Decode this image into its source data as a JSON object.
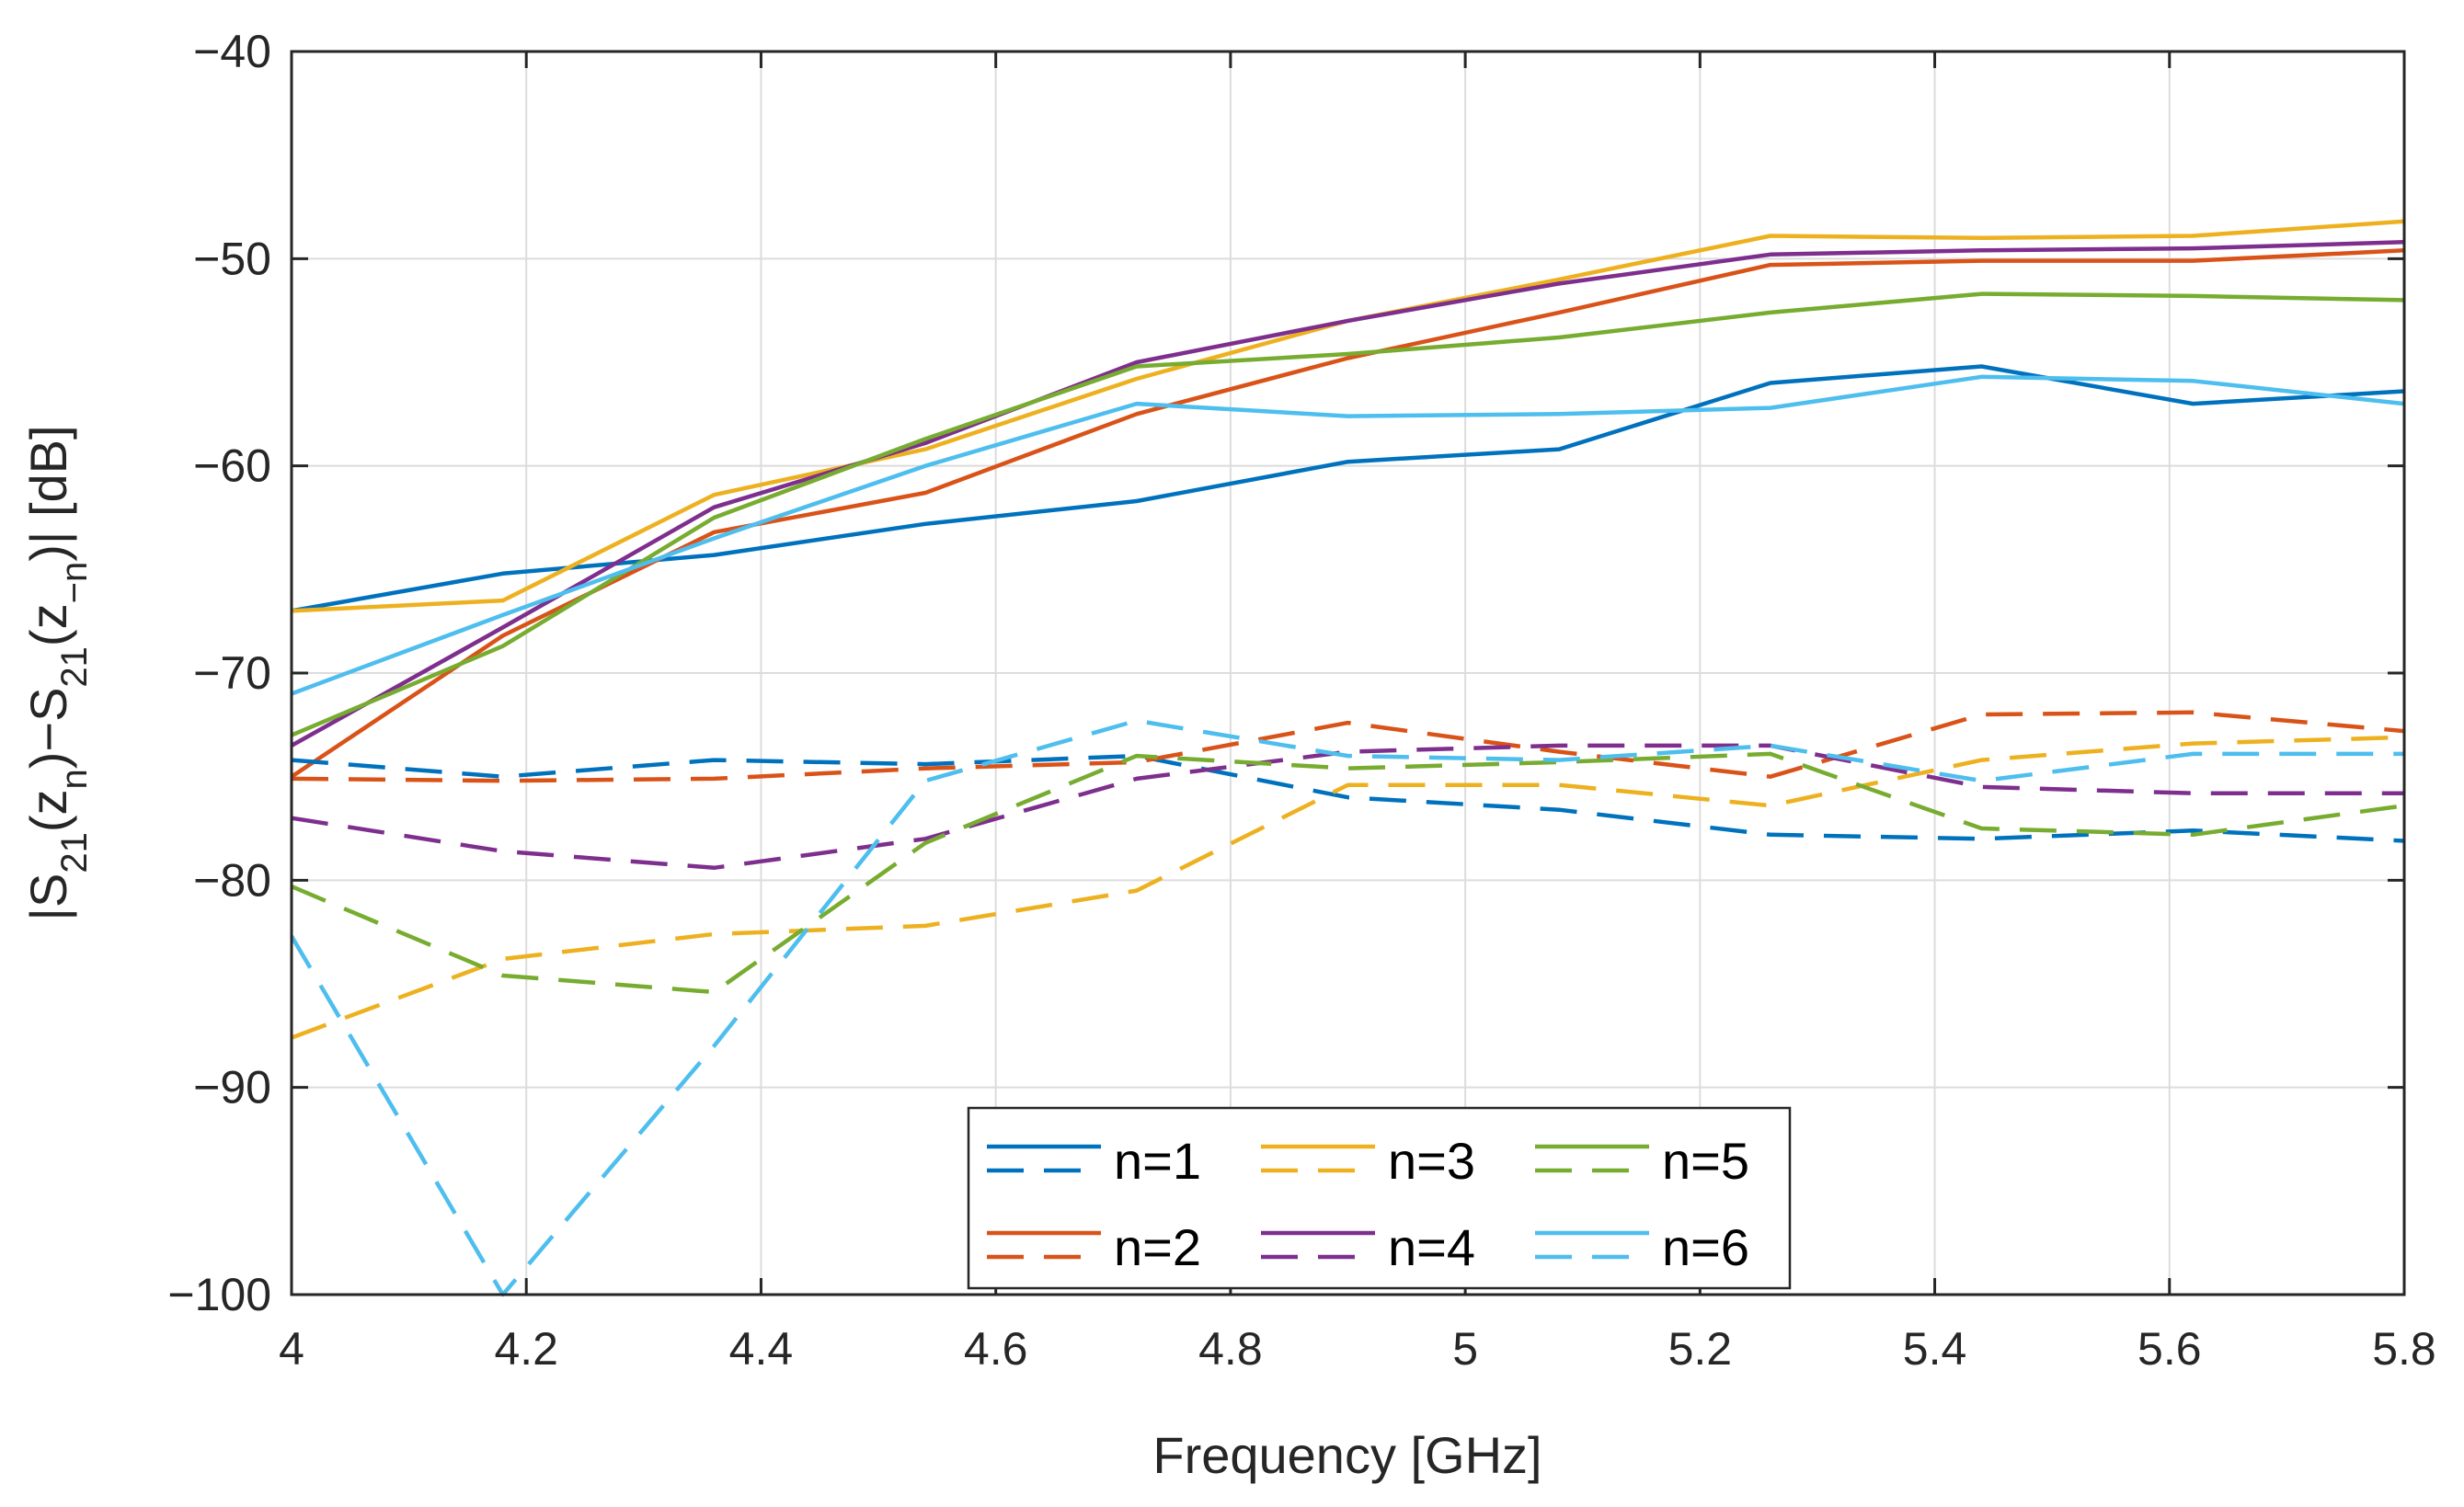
{
  "chart_data": {
    "type": "line",
    "title": "",
    "xlabel": "Frequency [GHz]",
    "ylabel": {
      "base": "|S",
      "sub1": "21",
      "p1": "(z",
      "sub2": "n",
      "p2": ")−S",
      "sub3": "21",
      "p3": "(z",
      "sub4": "−n",
      "p4": ")| [dB]"
    },
    "xlim": [
      4,
      5.8
    ],
    "ylim": [
      -100,
      -40
    ],
    "xticks": [
      4,
      4.2,
      4.4,
      4.6,
      4.8,
      5,
      5.2,
      5.4,
      5.6,
      5.8
    ],
    "xtick_labels": [
      "4",
      "4.2",
      "4.4",
      "4.6",
      "4.8",
      "5",
      "5.2",
      "5.4",
      "5.6",
      "5.8"
    ],
    "yticks": [
      -40,
      -50,
      -60,
      -70,
      -80,
      -90,
      -100
    ],
    "ytick_labels": [
      "−40",
      "−50",
      "−60",
      "−70",
      "−80",
      "−90",
      "−100"
    ],
    "grid": true,
    "legend_position": "bottom-center",
    "x": [
      4,
      4.18,
      4.36,
      4.54,
      4.72,
      4.9,
      5.08,
      5.26,
      5.44,
      5.62,
      5.8
    ],
    "series": [
      {
        "name": "n=1 solid",
        "n": "n=1",
        "style": "solid",
        "color": "#0072BD",
        "values": [
          -67.0,
          -65.2,
          -64.3,
          -62.8,
          -61.7,
          -59.8,
          -59.2,
          -56.0,
          -55.2,
          -57.0,
          -56.4
        ]
      },
      {
        "name": "n=2 solid",
        "n": "n=2",
        "style": "solid",
        "color": "#D95319",
        "values": [
          -75.0,
          -68.2,
          -63.2,
          -61.3,
          -57.5,
          -54.8,
          -52.6,
          -50.3,
          -50.1,
          -50.1,
          -49.6
        ]
      },
      {
        "name": "n=3 solid",
        "n": "n=3",
        "style": "solid",
        "color": "#EDB120",
        "values": [
          -67.0,
          -66.5,
          -61.4,
          -59.2,
          -55.8,
          -53.0,
          -51.0,
          -48.9,
          -49.0,
          -48.9,
          -48.2
        ]
      },
      {
        "name": "n=4 solid",
        "n": "n=4",
        "style": "solid",
        "color": "#7E2F8E",
        "values": [
          -73.5,
          -67.8,
          -62.0,
          -58.9,
          -55.0,
          -53.0,
          -51.2,
          -49.8,
          -49.6,
          -49.5,
          -49.2
        ]
      },
      {
        "name": "n=5 solid",
        "n": "n=5",
        "style": "solid",
        "color": "#77AC30",
        "values": [
          -73.0,
          -68.7,
          -62.5,
          -58.7,
          -55.2,
          -54.6,
          -53.8,
          -52.6,
          -51.7,
          -51.8,
          -52.0
        ]
      },
      {
        "name": "n=6 solid",
        "n": "n=6",
        "style": "solid",
        "color": "#4DBEEE",
        "values": [
          -71.0,
          -67.2,
          -63.5,
          -60.0,
          -57.0,
          -57.6,
          -57.5,
          -57.2,
          -55.7,
          -55.9,
          -57.0
        ]
      },
      {
        "name": "n=1 dashed",
        "n": "n=1",
        "style": "dashed",
        "color": "#0072BD",
        "values": [
          -74.2,
          -75.0,
          -74.2,
          -74.4,
          -74.0,
          -76.0,
          -76.6,
          -77.8,
          -78.0,
          -77.6,
          -78.1
        ]
      },
      {
        "name": "n=2 dashed",
        "n": "n=2",
        "style": "dashed",
        "color": "#D95319",
        "values": [
          -75.1,
          -75.2,
          -75.1,
          -74.6,
          -74.3,
          -72.4,
          -73.8,
          -75.0,
          -72.0,
          -71.9,
          -72.8
        ]
      },
      {
        "name": "n=3 dashed",
        "n": "n=3",
        "style": "dashed",
        "color": "#EDB120",
        "values": [
          -87.6,
          -83.8,
          -82.6,
          -82.2,
          -80.5,
          -75.4,
          -75.4,
          -76.4,
          -74.2,
          -73.4,
          -73.1
        ]
      },
      {
        "name": "n=4 dashed",
        "n": "n=4",
        "style": "dashed",
        "color": "#7E2F8E",
        "values": [
          -77.0,
          -78.6,
          -79.4,
          -78.0,
          -75.1,
          -73.8,
          -73.5,
          -73.5,
          -75.5,
          -75.8,
          -75.8
        ]
      },
      {
        "name": "n=5 dashed",
        "n": "n=5",
        "style": "dashed",
        "color": "#77AC30",
        "values": [
          -80.3,
          -84.6,
          -85.4,
          -78.2,
          -74.0,
          -74.6,
          -74.3,
          -73.9,
          -77.5,
          -77.8,
          -76.4
        ]
      },
      {
        "name": "n=6 dashed",
        "n": "n=6",
        "style": "dashed",
        "color": "#4DBEEE",
        "values": [
          -82.7,
          -100.0,
          -88.0,
          -75.2,
          -72.3,
          -74.0,
          -74.2,
          -73.5,
          -75.2,
          -73.9,
          -73.9
        ]
      }
    ],
    "legend": [
      {
        "label": "n=1",
        "color": "#0072BD"
      },
      {
        "label": "n=3",
        "color": "#EDB120"
      },
      {
        "label": "n=5",
        "color": "#77AC30"
      },
      {
        "label": "n=2",
        "color": "#D95319"
      },
      {
        "label": "n=4",
        "color": "#7E2F8E"
      },
      {
        "label": "n=6",
        "color": "#4DBEEE"
      }
    ]
  }
}
